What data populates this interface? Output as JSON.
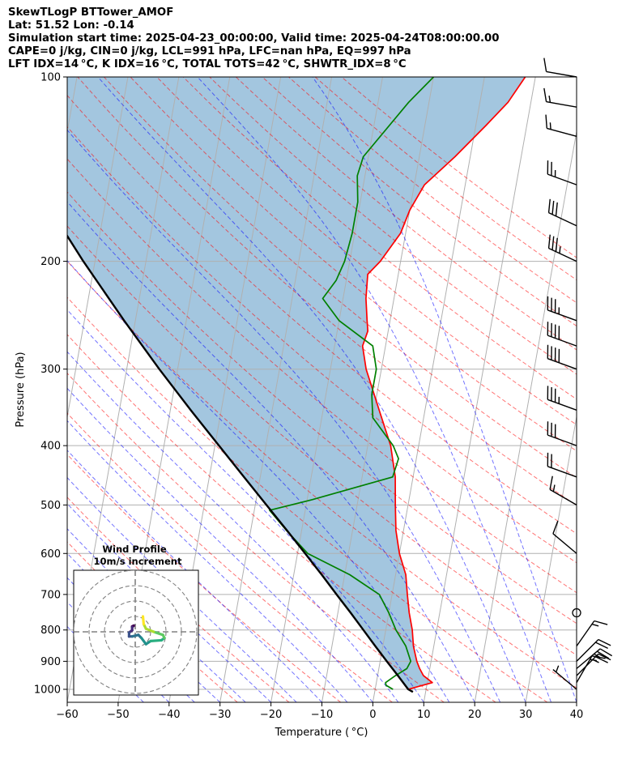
{
  "header": {
    "lines": [
      "SkewTLogP BTTower_AMOF",
      "Lat: 51.52   Lon: -0.14",
      "Simulation start time: 2025-04-23_00:00:00, Valid time: 2025-04-24T08:00:00.00",
      "CAPE=0 j/kg, CIN=0 j/kg, LCL=991 hPa, LFC=nan hPa, EQ=997 hPa",
      "LFT IDX=14 °C, K IDX=16 °C, TOTAL TOTS=42 °C, SHWTR_IDX=8 °C"
    ]
  },
  "chart_data": {
    "type": "skew-t log-p",
    "xlabel": "Temperature ( °C)",
    "ylabel": "Pressure (hPa)",
    "xlim": [
      -60,
      40
    ],
    "ylim": [
      1050,
      100
    ],
    "x_ticks": [
      -60,
      -50,
      -40,
      -30,
      -20,
      -10,
      0,
      10,
      20,
      30,
      40
    ],
    "x_tick_labels": [
      "−60",
      "−50",
      "−40",
      "−30",
      "−20",
      "−10",
      "0",
      "10",
      "20",
      "30",
      "40"
    ],
    "y_ticks": [
      1000,
      900,
      800,
      700,
      600,
      500,
      400,
      300,
      200,
      100
    ],
    "y_tick_labels": [
      "1000",
      "900",
      "800",
      "700",
      "600",
      "500",
      "400",
      "300",
      "200",
      "100"
    ],
    "grid": true,
    "series": [
      {
        "name": "Temperature",
        "color": "#ff0000",
        "points": [
          [
            1000,
            6.5
          ],
          [
            975,
            11
          ],
          [
            950,
            9
          ],
          [
            925,
            8
          ],
          [
            900,
            7.2
          ],
          [
            850,
            6
          ],
          [
            800,
            5.2
          ],
          [
            750,
            4
          ],
          [
            700,
            3
          ],
          [
            650,
            2
          ],
          [
            600,
            0
          ],
          [
            550,
            -1.5
          ],
          [
            500,
            -2.5
          ],
          [
            450,
            -3.5
          ],
          [
            400,
            -5.5
          ],
          [
            350,
            -9
          ],
          [
            300,
            -13
          ],
          [
            275,
            -14.5
          ],
          [
            260,
            -14
          ],
          [
            250,
            -14.5
          ],
          [
            230,
            -15.5
          ],
          [
            210,
            -16
          ],
          [
            200,
            -14
          ],
          [
            180,
            -11
          ],
          [
            165,
            -10
          ],
          [
            150,
            -8
          ],
          [
            135,
            -3
          ],
          [
            120,
            2
          ],
          [
            110,
            5.5
          ],
          [
            100,
            8
          ]
        ]
      },
      {
        "name": "Dewpoint",
        "color": "#008000",
        "points": [
          [
            1000,
            3.5
          ],
          [
            985,
            2
          ],
          [
            975,
            1.8
          ],
          [
            950,
            3.5
          ],
          [
            925,
            5.5
          ],
          [
            900,
            6
          ],
          [
            850,
            4.5
          ],
          [
            800,
            2
          ],
          [
            750,
            0
          ],
          [
            700,
            -2.5
          ],
          [
            650,
            -9
          ],
          [
            600,
            -18
          ],
          [
            550,
            -23
          ],
          [
            510,
            -27
          ],
          [
            490,
            -19
          ],
          [
            450,
            -4
          ],
          [
            420,
            -3.5
          ],
          [
            400,
            -5
          ],
          [
            360,
            -10
          ],
          [
            330,
            -11
          ],
          [
            300,
            -11
          ],
          [
            275,
            -12.5
          ],
          [
            250,
            -20
          ],
          [
            230,
            -24
          ],
          [
            215,
            -22
          ],
          [
            200,
            -21
          ],
          [
            180,
            -20.5
          ],
          [
            160,
            -20.5
          ],
          [
            145,
            -21.5
          ],
          [
            135,
            -21
          ],
          [
            110,
            -14
          ],
          [
            100,
            -10
          ]
        ]
      },
      {
        "name": "Parcel",
        "color": "#000000",
        "points": [
          [
            1010,
            7.5
          ],
          [
            1000,
            6.5
          ],
          [
            950,
            4.0
          ],
          [
            900,
            1.3
          ],
          [
            850,
            -1.5
          ],
          [
            800,
            -4.4
          ],
          [
            750,
            -7.5
          ],
          [
            700,
            -10.9
          ],
          [
            650,
            -14.5
          ],
          [
            600,
            -18.5
          ],
          [
            550,
            -22.9
          ],
          [
            500,
            -27.8
          ],
          [
            450,
            -33.2
          ],
          [
            400,
            -39.2
          ],
          [
            350,
            -46.0
          ],
          [
            300,
            -53.6
          ],
          [
            250,
            -62.2
          ],
          [
            200,
            -72.3
          ],
          [
            150,
            -84.5
          ],
          [
            100,
            -100
          ]
        ]
      }
    ],
    "shaded_area": {
      "name": "CAPE/CIN",
      "color": "#a3c6df",
      "between": [
        "Temperature",
        "Parcel"
      ]
    },
    "reference_lines": {
      "dry_adiabats": {
        "color": "#ff6666",
        "style": "dashed"
      },
      "moist_adiabats": {
        "color": "#6666ff",
        "style": "dashed"
      },
      "mixing_ratio": {
        "color": "#999999",
        "style": "solid"
      }
    },
    "wind_barbs": [
      {
        "pressure": 1000,
        "speed_kt": 5,
        "direction_deg": 310
      },
      {
        "pressure": 975,
        "speed_kt": 15,
        "direction_deg": 30
      },
      {
        "pressure": 950,
        "speed_kt": 25,
        "direction_deg": 45
      },
      {
        "pressure": 925,
        "speed_kt": 25,
        "direction_deg": 50
      },
      {
        "pressure": 900,
        "speed_kt": 20,
        "direction_deg": 45
      },
      {
        "pressure": 850,
        "speed_kt": 15,
        "direction_deg": 35
      },
      {
        "pressure": 750,
        "speed_kt": 0,
        "direction_deg": 0
      },
      {
        "pressure": 600,
        "speed_kt": 10,
        "direction_deg": 310
      },
      {
        "pressure": 500,
        "speed_kt": 15,
        "direction_deg": 300
      },
      {
        "pressure": 450,
        "speed_kt": 20,
        "direction_deg": 290
      },
      {
        "pressure": 400,
        "speed_kt": 30,
        "direction_deg": 290
      },
      {
        "pressure": 350,
        "speed_kt": 35,
        "direction_deg": 290
      },
      {
        "pressure": 300,
        "speed_kt": 40,
        "direction_deg": 290
      },
      {
        "pressure": 275,
        "speed_kt": 40,
        "direction_deg": 290
      },
      {
        "pressure": 250,
        "speed_kt": 35,
        "direction_deg": 290
      },
      {
        "pressure": 200,
        "speed_kt": 35,
        "direction_deg": 295
      },
      {
        "pressure": 175,
        "speed_kt": 30,
        "direction_deg": 295
      },
      {
        "pressure": 150,
        "speed_kt": 25,
        "direction_deg": 290
      },
      {
        "pressure": 125,
        "speed_kt": 15,
        "direction_deg": 285
      },
      {
        "pressure": 112,
        "speed_kt": 15,
        "direction_deg": 280
      },
      {
        "pressure": 100,
        "speed_kt": 10,
        "direction_deg": 280
      }
    ],
    "inset": {
      "type": "hodograph",
      "title": "Wind Profile",
      "subtitle": "10m/s increment",
      "rings_ms": [
        10,
        20,
        30,
        40
      ],
      "points": [
        [
          5,
          10
        ],
        [
          5.5,
          5
        ],
        [
          7,
          2
        ],
        [
          12,
          0
        ],
        [
          18,
          -2
        ],
        [
          19,
          -4
        ],
        [
          17,
          -5.5
        ],
        [
          10,
          -6
        ],
        [
          7,
          -8
        ],
        [
          4,
          -4
        ],
        [
          2,
          -2
        ],
        [
          -2,
          -3
        ],
        [
          -4,
          -3
        ],
        [
          -4,
          -0.5
        ],
        [
          -2,
          1
        ],
        [
          -2,
          3
        ],
        [
          -1,
          4
        ],
        [
          -2,
          3.5
        ]
      ]
    }
  }
}
